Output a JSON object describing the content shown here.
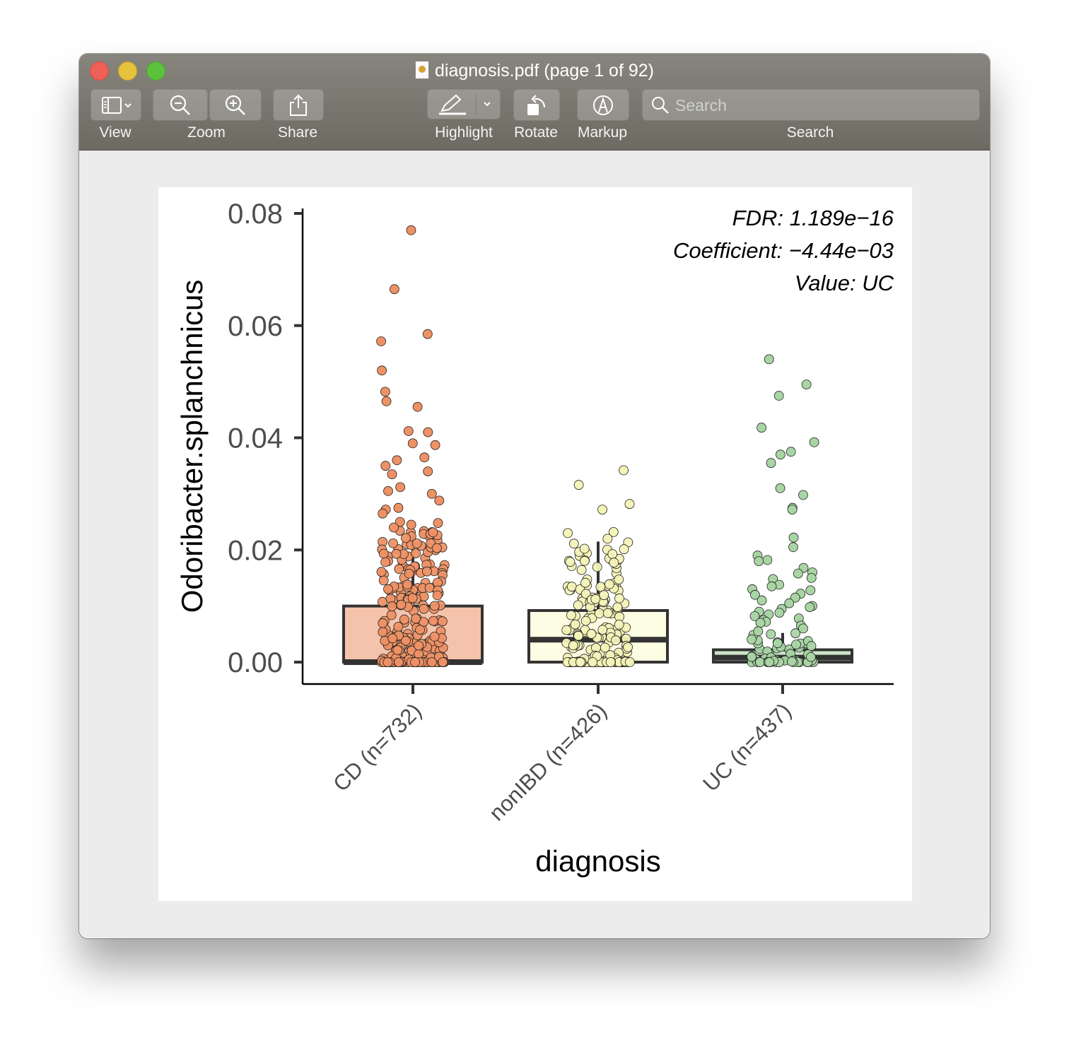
{
  "window": {
    "title": "diagnosis.pdf (page 1 of 92)",
    "doc_icon": "preview-document-icon"
  },
  "toolbar": {
    "view_label": "View",
    "zoom_label": "Zoom",
    "share_label": "Share",
    "highlight_label": "Highlight",
    "rotate_label": "Rotate",
    "markup_label": "Markup",
    "search_label": "Search",
    "search_placeholder": "Search",
    "icons": [
      "sidebar-icon",
      "chevron-down-icon",
      "zoom-out-icon",
      "zoom-in-icon",
      "share-icon",
      "highlighter-icon",
      "rotate-icon",
      "markup-icon",
      "search-icon"
    ]
  },
  "chart_data": {
    "type": "box",
    "xlabel": "diagnosis",
    "ylabel": "Odoribacter.splanchnicus",
    "ylim": [
      -0.0035,
      0.08
    ],
    "yticks": [
      "0.00",
      "0.02",
      "0.04",
      "0.06",
      "0.08"
    ],
    "ytick_values": [
      0,
      0.02,
      0.04,
      0.06,
      0.08
    ],
    "categories": [
      "CD (n=732)",
      "nonIBD (n=426)",
      "UC (n=437)"
    ],
    "annotations": [
      "FDR: 1.189e−16",
      "Coefficient: −4.44e−03",
      "Value: UC"
    ],
    "series": [
      {
        "category": "CD (n=732)",
        "fill": "#f5c3ab",
        "point_color": "#ee9165",
        "box": {
          "q1": 0.0,
          "median": 0.0,
          "q3": 0.01,
          "whisker_high": 0.0235
        },
        "outliers": [
          0.077,
          0.0665,
          0.0585,
          0.0572,
          0.052,
          0.0482,
          0.0465,
          0.0455,
          0.0412,
          0.041,
          0.0387,
          0.039,
          0.0365,
          0.036,
          0.035,
          0.034,
          0.0335,
          0.0312,
          0.0305,
          0.03,
          0.0288,
          0.0275,
          0.0272,
          0.0265,
          0.025,
          0.0248,
          0.0245,
          0.024
        ]
      },
      {
        "category": "nonIBD (n=426)",
        "fill": "#fdfde4",
        "point_color": "#f4f3b8",
        "box": {
          "q1": 0.0,
          "median": 0.004,
          "q3": 0.0092,
          "whisker_high": 0.0215
        },
        "outliers": [
          0.0342,
          0.0316,
          0.0282,
          0.0272,
          0.0232,
          0.023,
          0.022
        ]
      },
      {
        "category": "UC (n=437)",
        "fill": "#cbe6c8",
        "point_color": "#a9d5a4",
        "box": {
          "q1": 0.0,
          "median": 0.0008,
          "q3": 0.0022,
          "whisker_high": 0.0052
        },
        "outliers": [
          0.054,
          0.0495,
          0.0475,
          0.0418,
          0.0392,
          0.0375,
          0.037,
          0.0355,
          0.031,
          0.0298,
          0.0275,
          0.0272,
          0.0222,
          0.0205,
          0.019,
          0.0182,
          0.018,
          0.0168,
          0.016,
          0.0158,
          0.015,
          0.0148,
          0.0138,
          0.0135,
          0.013,
          0.0128,
          0.0122,
          0.012,
          0.0115,
          0.011,
          0.0105,
          0.01,
          0.0098,
          0.0095,
          0.009,
          0.0088,
          0.0085,
          0.0082,
          0.0078,
          0.0075,
          0.0072,
          0.007,
          0.0065,
          0.006,
          0.0055
        ]
      }
    ]
  }
}
